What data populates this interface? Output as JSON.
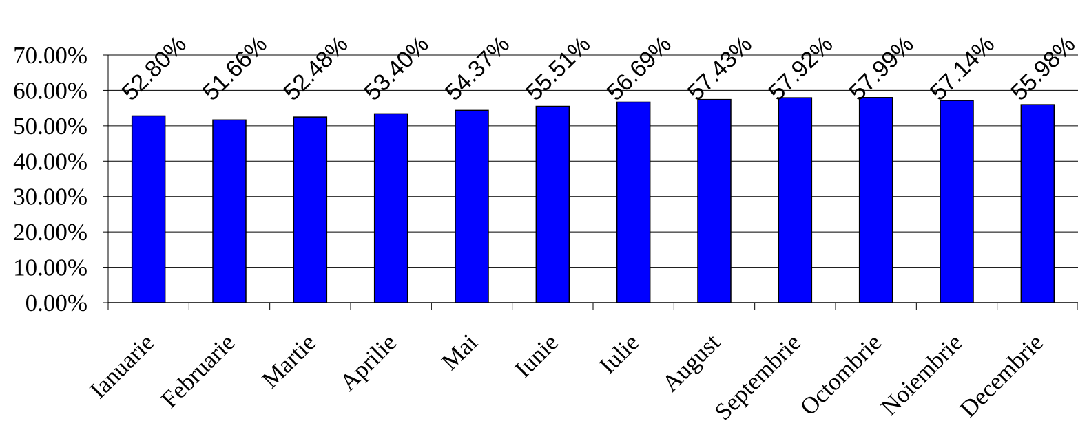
{
  "chart_data": {
    "type": "bar",
    "categories": [
      "Ianuarie",
      "Februarie",
      "Martie",
      "Aprilie",
      "Mai",
      "Iunie",
      "Iulie",
      "August",
      "Septembrie",
      "Octombrie",
      "Noiembrie",
      "Decembrie"
    ],
    "values": [
      52.8,
      51.66,
      52.48,
      53.4,
      54.37,
      55.51,
      56.69,
      57.43,
      57.92,
      57.99,
      57.14,
      55.98
    ],
    "data_labels": [
      "52.80%",
      "51.66%",
      "52.48%",
      "53.40%",
      "54.37%",
      "55.51%",
      "56.69%",
      "57.43%",
      "57.92%",
      "57.99%",
      "57.14%",
      "55.98%"
    ],
    "y_ticks": [
      {
        "value": 0,
        "label": "0.00%"
      },
      {
        "value": 10,
        "label": "10.00%"
      },
      {
        "value": 20,
        "label": "20.00%"
      },
      {
        "value": 30,
        "label": "30.00%"
      },
      {
        "value": 40,
        "label": "40.00%"
      },
      {
        "value": 50,
        "label": "50.00%"
      },
      {
        "value": 60,
        "label": "60.00%"
      },
      {
        "value": 70,
        "label": "70.00%"
      }
    ],
    "ylim": [
      0,
      70
    ],
    "grid": true,
    "legend": "none",
    "colors": {
      "bar": "#0000ff",
      "bar_stroke": "#000000",
      "grid": "#000000"
    }
  }
}
